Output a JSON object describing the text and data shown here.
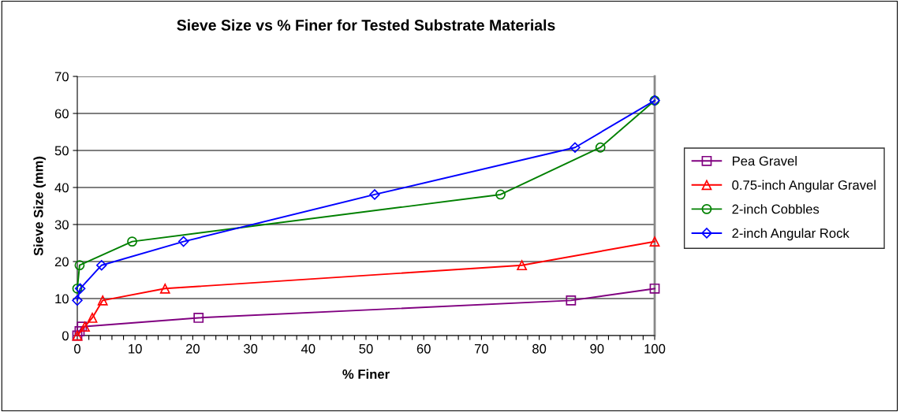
{
  "chart_data": {
    "type": "line",
    "title": "Sieve Size vs % Finer for Tested Substrate Materials",
    "xlabel": "% Finer",
    "ylabel": "Sieve Size (mm)",
    "series": [
      {
        "name": "Pea Gravel",
        "color": "#800080",
        "marker": "square",
        "x": [
          0,
          0.4,
          0.8,
          21,
          85.5,
          100
        ],
        "values": [
          0,
          1.2,
          2.4,
          4.8,
          9.5,
          12.7
        ]
      },
      {
        "name": "0.75-inch Angular Gravel",
        "color": "#ff0000",
        "marker": "triangle",
        "x": [
          0,
          1.3,
          2.6,
          4.4,
          15.2,
          77,
          100
        ],
        "values": [
          0,
          2.4,
          4.8,
          9.5,
          12.7,
          19,
          25.4
        ]
      },
      {
        "name": "2-inch Cobbles",
        "color": "#008000",
        "marker": "circle",
        "x": [
          0,
          0.4,
          9.5,
          73.3,
          90.6,
          100
        ],
        "values": [
          12.7,
          19,
          25.4,
          38.1,
          50.8,
          63.5
        ]
      },
      {
        "name": "2-inch Angular Rock",
        "color": "#0000ff",
        "marker": "diamond",
        "x": [
          0,
          0.5,
          4.2,
          18.4,
          51.5,
          86.2,
          100
        ],
        "values": [
          9.5,
          12.7,
          19,
          25.4,
          38.1,
          50.8,
          63.5
        ]
      }
    ],
    "xlim": [
      0,
      100
    ],
    "ylim": [
      0,
      70
    ],
    "xticks": [
      0,
      {
        "value": 2,
        "label": null
      },
      {
        "value": 4,
        "label": null
      },
      {
        "value": 6,
        "label": null
      },
      {
        "value": 8,
        "label": null
      },
      10,
      {
        "value": 12,
        "label": null
      },
      {
        "value": 14,
        "label": null
      },
      {
        "value": 16,
        "label": null
      },
      {
        "value": 18,
        "label": null
      },
      20,
      {
        "value": 22,
        "label": null
      },
      {
        "value": 24,
        "label": null
      },
      {
        "value": 26,
        "label": null
      },
      {
        "value": 28,
        "label": null
      },
      30,
      {
        "value": 32,
        "label": null
      },
      {
        "value": 34,
        "label": null
      },
      {
        "value": 36,
        "label": null
      },
      {
        "value": 38,
        "label": null
      },
      40,
      {
        "value": 42,
        "label": null
      },
      {
        "value": 44,
        "label": null
      },
      {
        "value": 46,
        "label": null
      },
      {
        "value": 48,
        "label": null
      },
      50,
      {
        "value": 52,
        "label": null
      },
      {
        "value": 54,
        "label": null
      },
      {
        "value": 56,
        "label": null
      },
      {
        "value": 58,
        "label": null
      },
      60,
      {
        "value": 62,
        "label": null
      },
      {
        "value": 64,
        "label": null
      },
      {
        "value": 66,
        "label": null
      },
      {
        "value": 68,
        "label": null
      },
      70,
      {
        "value": 72,
        "label": null
      },
      {
        "value": 74,
        "label": null
      },
      {
        "value": 76,
        "label": null
      },
      {
        "value": 78,
        "label": null
      },
      80,
      {
        "value": 82,
        "label": null
      },
      {
        "value": 84,
        "label": null
      },
      {
        "value": 86,
        "label": null
      },
      {
        "value": 88,
        "label": null
      },
      90,
      {
        "value": 92,
        "label": null
      },
      {
        "value": 94,
        "label": null
      },
      {
        "value": 96,
        "label": null
      },
      {
        "value": 98,
        "label": null
      },
      100
    ],
    "yticks": [
      0,
      10,
      20,
      30,
      40,
      50,
      60,
      70
    ],
    "grid": "y",
    "legend": "right",
    "line_style": "solid"
  }
}
